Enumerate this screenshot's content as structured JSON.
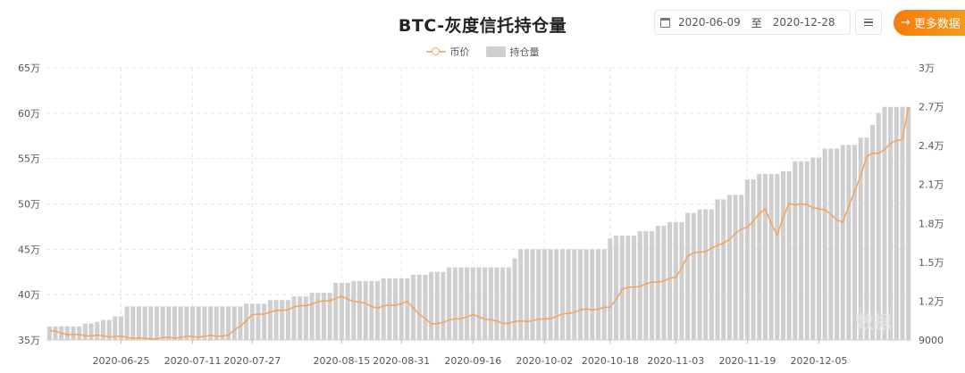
{
  "header": {
    "title": "BTC-灰度信托持仓量",
    "date_start": "2020-06-09",
    "date_separator": "至",
    "date_end": "2020-12-28",
    "more_button_label": "更多数据",
    "more_button_icon": "arrow-right-icon",
    "menu_icon": "hamburger-menu-icon",
    "calendar_icon": "calendar-icon"
  },
  "legend": {
    "price_label": "币价",
    "holdings_label": "持仓量"
  },
  "colors": {
    "price_line": "#f5a35a",
    "holdings_bar": "#cfcfcf",
    "accent": "#f77b0b",
    "grid": "#e4e4e4",
    "axis_text": "#555555"
  },
  "chart_data": {
    "type": "bar+line",
    "title": "BTC-灰度信托持仓量",
    "legend": [
      "币价",
      "持仓量"
    ],
    "legend_position": "top",
    "x_tick_labels": [
      "2020-06-25",
      "2020-07-11",
      "2020-07-27",
      "2020-08-15",
      "2020-08-31",
      "2020-09-16",
      "2020-10-02",
      "2020-10-18",
      "2020-11-03",
      "2020-11-19",
      "2020-12-05"
    ],
    "y_left": {
      "label": "持仓量",
      "ticks": [
        "35万",
        "40万",
        "45万",
        "50万",
        "55万",
        "60万",
        "65万"
      ],
      "range": [
        350000,
        650000
      ]
    },
    "y_right": {
      "label": "币价",
      "ticks": [
        "9000",
        "1.2万",
        "1.5万",
        "1.8万",
        "2.1万",
        "2.4万",
        "2.7万",
        "3万"
      ],
      "range": [
        9000,
        30000
      ]
    },
    "grid": true,
    "series": [
      {
        "name": "持仓量",
        "type": "bar",
        "axis": "left",
        "step_levels": [
          {
            "from": "2020-06-09",
            "value": 365000
          },
          {
            "from": "2020-06-17",
            "value": 368000
          },
          {
            "from": "2020-06-19",
            "value": 370000
          },
          {
            "from": "2020-06-22",
            "value": 372000
          },
          {
            "from": "2020-06-24",
            "value": 376000
          },
          {
            "from": "2020-06-26",
            "value": 387000
          },
          {
            "from": "2020-07-24",
            "value": 390000
          },
          {
            "from": "2020-07-30",
            "value": 394000
          },
          {
            "from": "2020-08-05",
            "value": 398000
          },
          {
            "from": "2020-08-10",
            "value": 402000
          },
          {
            "from": "2020-08-14",
            "value": 413000
          },
          {
            "from": "2020-08-19",
            "value": 415000
          },
          {
            "from": "2020-08-26",
            "value": 418000
          },
          {
            "from": "2020-09-02",
            "value": 422000
          },
          {
            "from": "2020-09-07",
            "value": 425000
          },
          {
            "from": "2020-09-10",
            "value": 430000
          },
          {
            "from": "2020-09-25",
            "value": 440000
          },
          {
            "from": "2020-09-28",
            "value": 450000
          },
          {
            "from": "2020-10-19",
            "value": 462000
          },
          {
            "from": "2020-10-20",
            "value": 465000
          },
          {
            "from": "2020-10-26",
            "value": 470000
          },
          {
            "from": "2020-10-29",
            "value": 476000
          },
          {
            "from": "2020-11-02",
            "value": 480000
          },
          {
            "from": "2020-11-05",
            "value": 490000
          },
          {
            "from": "2020-11-09",
            "value": 494000
          },
          {
            "from": "2020-11-12",
            "value": 505000
          },
          {
            "from": "2020-11-16",
            "value": 510000
          },
          {
            "from": "2020-11-19",
            "value": 527000
          },
          {
            "from": "2020-11-23",
            "value": 533000
          },
          {
            "from": "2020-11-27",
            "value": 536000
          },
          {
            "from": "2020-12-01",
            "value": 547000
          },
          {
            "from": "2020-12-04",
            "value": 551000
          },
          {
            "from": "2020-12-08",
            "value": 561000
          },
          {
            "from": "2020-12-11",
            "value": 565000
          },
          {
            "from": "2020-12-16",
            "value": 573000
          },
          {
            "from": "2020-12-18",
            "value": 587000
          },
          {
            "from": "2020-12-21",
            "value": 600000
          },
          {
            "from": "2020-12-22",
            "value": 607000
          }
        ]
      },
      {
        "name": "币价",
        "type": "line",
        "axis": "right",
        "key_points": [
          {
            "date": "2020-06-09",
            "value": 9700
          },
          {
            "date": "2020-06-15",
            "value": 9400
          },
          {
            "date": "2020-06-25",
            "value": 9250
          },
          {
            "date": "2020-07-01",
            "value": 9100
          },
          {
            "date": "2020-07-11",
            "value": 9250
          },
          {
            "date": "2020-07-21",
            "value": 9350
          },
          {
            "date": "2020-07-27",
            "value": 10900
          },
          {
            "date": "2020-08-02",
            "value": 11300
          },
          {
            "date": "2020-08-10",
            "value": 11800
          },
          {
            "date": "2020-08-17",
            "value": 12300
          },
          {
            "date": "2020-08-25",
            "value": 11500
          },
          {
            "date": "2020-09-01",
            "value": 11900
          },
          {
            "date": "2020-09-05",
            "value": 10200
          },
          {
            "date": "2020-09-16",
            "value": 10900
          },
          {
            "date": "2020-09-23",
            "value": 10300
          },
          {
            "date": "2020-10-02",
            "value": 10600
          },
          {
            "date": "2020-10-10",
            "value": 11300
          },
          {
            "date": "2020-10-18",
            "value": 11500
          },
          {
            "date": "2020-10-21",
            "value": 12900
          },
          {
            "date": "2020-10-28",
            "value": 13400
          },
          {
            "date": "2020-11-03",
            "value": 13800
          },
          {
            "date": "2020-11-05",
            "value": 15500
          },
          {
            "date": "2020-11-12",
            "value": 16200
          },
          {
            "date": "2020-11-19",
            "value": 17800
          },
          {
            "date": "2020-11-24",
            "value": 19100
          },
          {
            "date": "2020-11-26",
            "value": 17100
          },
          {
            "date": "2020-11-30",
            "value": 19600
          },
          {
            "date": "2020-12-05",
            "value": 19200
          },
          {
            "date": "2020-12-11",
            "value": 18100
          },
          {
            "date": "2020-12-14",
            "value": 19200
          },
          {
            "date": "2020-12-17",
            "value": 23100
          },
          {
            "date": "2020-12-21",
            "value": 23500
          },
          {
            "date": "2020-12-25",
            "value": 24600
          },
          {
            "date": "2020-12-27",
            "value": 27000
          },
          {
            "date": "2020-12-28",
            "value": 26300
          }
        ]
      }
    ]
  }
}
